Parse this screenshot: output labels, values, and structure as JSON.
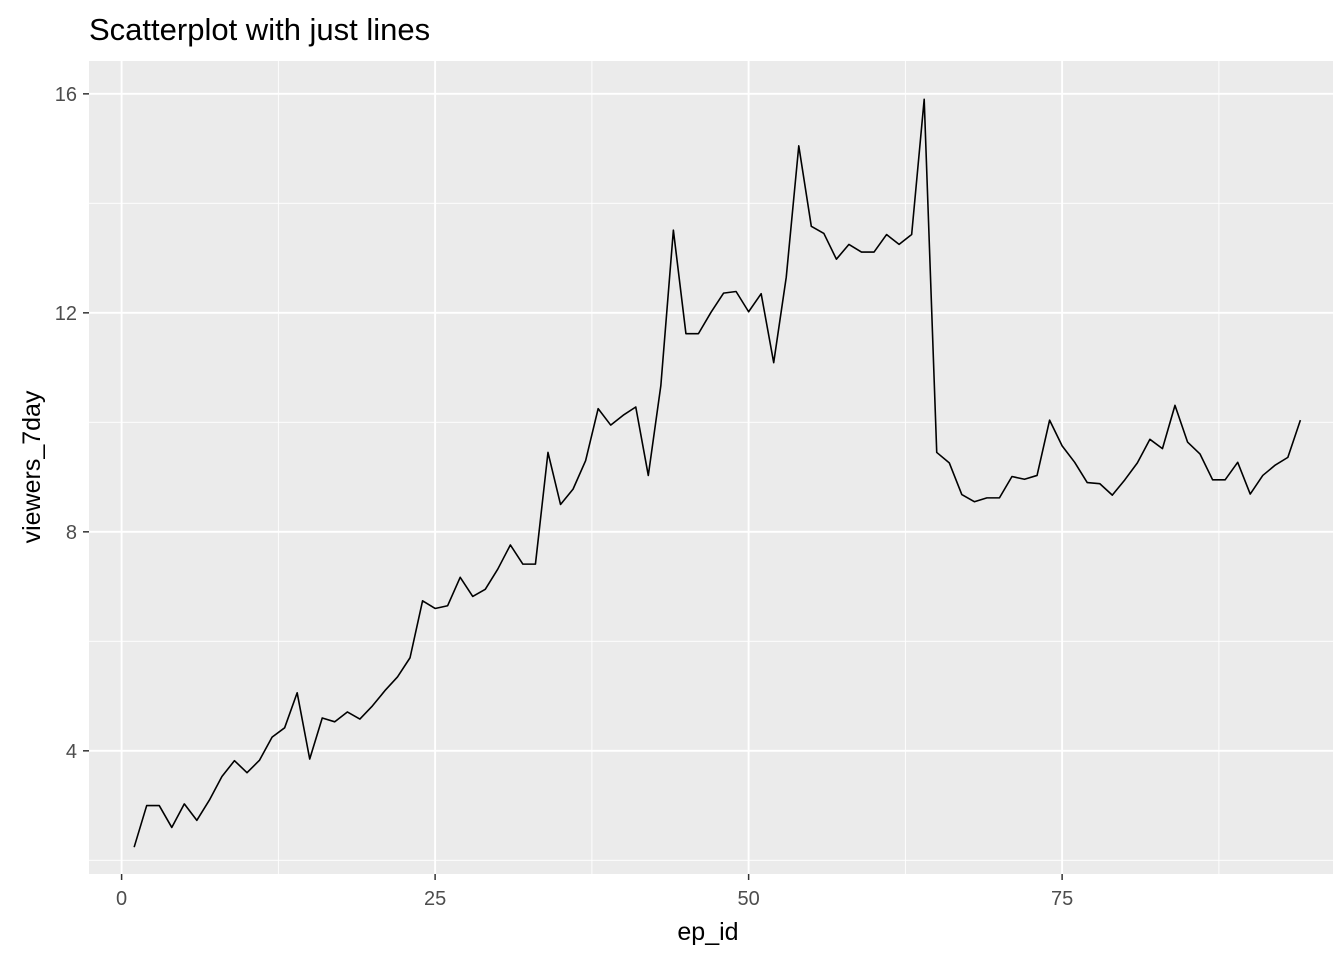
{
  "chart_data": {
    "type": "line",
    "title": "Scatterplot with just lines",
    "xlabel": "ep_id",
    "ylabel": "viewers_7day",
    "xlim": [
      -2.6,
      96.6
    ],
    "ylim": [
      1.75,
      16.6
    ],
    "x_ticks": [
      0,
      25,
      50,
      75
    ],
    "x_tick_labels": [
      "0",
      "25",
      "50",
      "75"
    ],
    "y_ticks": [
      4,
      8,
      12,
      16
    ],
    "y_tick_labels": [
      "4",
      "8",
      "12",
      "16"
    ],
    "grid": true,
    "legend": "none",
    "colors": {
      "panel": "#EBEBEB",
      "grid": "#FFFFFF",
      "line": "#000000",
      "tick_text": "#4D4D4D"
    },
    "series": [
      {
        "x": [
          1,
          2,
          3,
          4,
          5,
          6,
          7,
          8,
          9,
          10,
          11,
          12,
          13,
          14,
          15,
          16,
          17,
          18,
          19,
          20,
          21,
          22,
          23,
          24,
          25,
          26,
          27,
          28,
          29,
          30,
          31,
          32,
          33,
          34,
          35,
          36,
          37,
          38,
          39,
          40,
          41,
          42,
          43,
          44,
          45,
          46,
          47,
          48,
          49,
          50,
          51,
          52,
          53,
          54,
          55,
          56,
          57,
          58,
          59,
          60,
          61,
          62,
          63,
          64,
          65,
          66,
          67,
          68,
          69,
          70,
          71,
          72,
          73,
          74,
          75,
          76,
          77,
          78,
          79,
          80,
          81,
          82,
          83,
          84,
          85,
          86,
          87,
          88,
          89,
          90,
          91,
          92,
          93,
          94
        ],
        "y": [
          2.24,
          3.0,
          3.0,
          2.6,
          3.03,
          2.73,
          3.1,
          3.53,
          3.82,
          3.6,
          3.83,
          4.25,
          4.42,
          5.06,
          3.85,
          4.6,
          4.53,
          4.71,
          4.58,
          4.82,
          5.1,
          5.35,
          5.7,
          6.74,
          6.6,
          6.65,
          7.17,
          6.82,
          6.95,
          7.32,
          7.76,
          7.41,
          7.41,
          9.45,
          8.5,
          8.78,
          9.3,
          10.25,
          9.95,
          10.13,
          10.28,
          9.03,
          10.67,
          13.51,
          11.62,
          11.62,
          12.01,
          12.36,
          12.39,
          12.02,
          12.35,
          11.09,
          12.65,
          15.05,
          13.58,
          13.45,
          12.98,
          13.25,
          13.11,
          13.11,
          13.43,
          13.25,
          13.43,
          15.9,
          9.45,
          9.26,
          8.68,
          8.55,
          8.62,
          8.62,
          9.01,
          8.96,
          9.03,
          10.04,
          9.57,
          9.27,
          8.9,
          8.88,
          8.67,
          8.95,
          9.26,
          9.69,
          9.52,
          10.31,
          9.64,
          9.42,
          8.95,
          8.95,
          9.27,
          8.69,
          9.03,
          9.22,
          9.36,
          10.04
        ]
      }
    ]
  }
}
